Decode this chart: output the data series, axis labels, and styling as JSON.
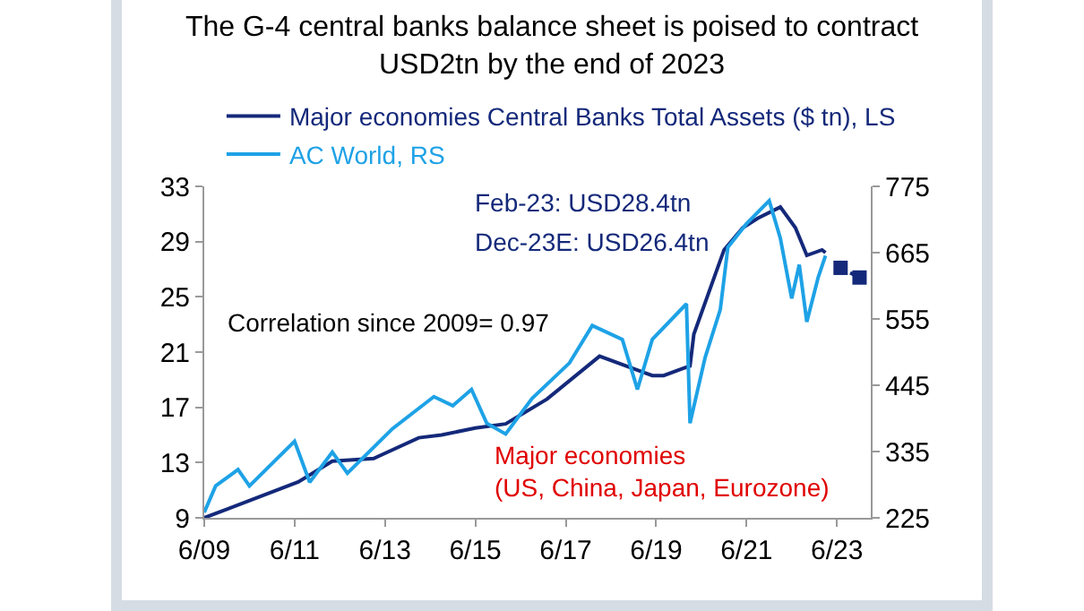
{
  "chart_data": {
    "type": "line",
    "title": "The G-4 central banks balance sheet is poised to contract\nUSD2tn by the end of 2023",
    "series": [
      {
        "name": "Major economies Central Banks Total Assets ($ tn), LS",
        "color": "#14297a",
        "x": [
          "2009-06",
          "2011-07",
          "2012-04",
          "2013-03",
          "2014-03",
          "2014-09",
          "2015-06",
          "2016-02",
          "2017-01",
          "2018-03",
          "2019-01",
          "2019-05",
          "2019-08",
          "2020-03",
          "2020-04",
          "2020-12",
          "2021-05",
          "2021-09",
          "2022-03",
          "2022-07",
          "2022-10",
          "2023-02",
          "2023-03"
        ],
        "values": [
          9.0,
          11.6,
          13.1,
          13.3,
          14.8,
          15.0,
          15.5,
          15.8,
          17.6,
          20.7,
          19.7,
          19.3,
          19.3,
          20.0,
          22.3,
          28.4,
          30.0,
          30.7,
          31.5,
          30.0,
          28.0,
          28.4,
          28.2
        ]
      },
      {
        "color": "#14297a",
        "type": "line",
        "line_style": "dotted",
        "marker": "square",
        "x": [
          "2023-07",
          "2023-12"
        ],
        "values": [
          27.1,
          26.4
        ]
      },
      {
        "name": "AC World, RS",
        "color": "#1ea2e6",
        "axis": "y2",
        "x": [
          "2009-06",
          "2009-09",
          "2010-03",
          "2010-06",
          "2011-06",
          "2011-10",
          "2012-04",
          "2012-08",
          "2013-08",
          "2014-07",
          "2014-12",
          "2015-05",
          "2015-09",
          "2016-02",
          "2016-09",
          "2017-07",
          "2018-01",
          "2018-09",
          "2019-01",
          "2019-05",
          "2020-02",
          "2020-03",
          "2020-07",
          "2020-11",
          "2021-01",
          "2021-06",
          "2021-12",
          "2022-03",
          "2022-06",
          "2022-08",
          "2022-10",
          "2023-01",
          "2023-03"
        ],
        "values": [
          234,
          278,
          305,
          278,
          352,
          284,
          334,
          299,
          373,
          426,
          411,
          438,
          382,
          364,
          423,
          482,
          544,
          521,
          438,
          521,
          580,
          382,
          491,
          571,
          674,
          713,
          751,
          689,
          589,
          645,
          550,
          624,
          660
        ]
      }
    ],
    "xlim": [
      "2009-06",
      "2024-03"
    ],
    "xticks": [
      {
        "value": "2009-06",
        "label": "6/09"
      },
      {
        "value": "2011-06",
        "label": "6/11"
      },
      {
        "value": "2013-06",
        "label": "6/13"
      },
      {
        "value": "2015-06",
        "label": "6/15"
      },
      {
        "value": "2017-06",
        "label": "6/17"
      },
      {
        "value": "2019-06",
        "label": "6/19"
      },
      {
        "value": "2021-06",
        "label": "6/21"
      },
      {
        "value": "2023-06",
        "label": "6/23"
      }
    ],
    "ylim": [
      9,
      33
    ],
    "yticks": [
      9,
      13,
      17,
      21,
      25,
      29,
      33
    ],
    "y2lim": [
      225,
      775
    ],
    "y2ticks": [
      225,
      335,
      445,
      555,
      665,
      775
    ],
    "annotations": [
      "Feb-23: USD28.4tn",
      "Dec-23E: USD26.4tn",
      "Correlation since 2009= 0.97",
      "Major economies\n(US, China, Japan, Eurozone)"
    ],
    "legend": "top",
    "grid": false,
    "marker": "none",
    "line_style": "solid"
  }
}
